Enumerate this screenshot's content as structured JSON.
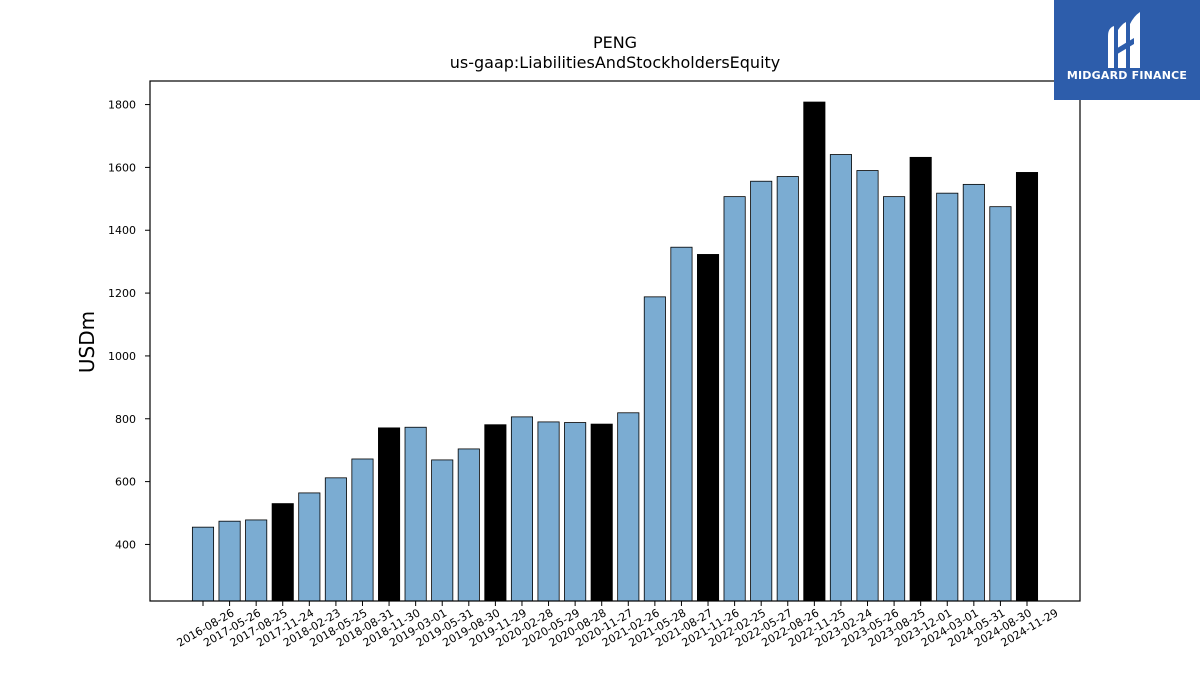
{
  "chart_data": {
    "type": "bar",
    "title": "PENG",
    "subtitle": "us-gaap:LiabilitiesAndStockholdersEquity",
    "ylabel": "USDm",
    "ylim": [
      220,
      1875
    ],
    "yticks": [
      400,
      600,
      800,
      1000,
      1200,
      1400,
      1600,
      1800
    ],
    "grid": false,
    "categories": [
      "2016-08-26",
      "2017-05-26",
      "2017-08-25",
      "2017-11-24",
      "2018-02-23",
      "2018-05-25",
      "2018-08-31",
      "2018-11-30",
      "2019-03-01",
      "2019-05-31",
      "2019-08-30",
      "2019-11-29",
      "2020-02-28",
      "2020-05-29",
      "2020-08-28",
      "2020-11-27",
      "2021-02-26",
      "2021-05-28",
      "2021-08-27",
      "2021-11-26",
      "2022-02-25",
      "2022-05-27",
      "2022-08-26",
      "2022-11-25",
      "2023-02-24",
      "2023-05-26",
      "2023-08-25",
      "2023-12-01",
      "2024-03-01",
      "2024-05-31",
      "2024-08-30",
      "2024-11-29"
    ],
    "values": [
      455,
      474,
      478,
      530,
      564,
      612,
      672,
      771,
      773,
      669,
      704,
      781,
      806,
      790,
      788,
      783,
      819,
      1188,
      1346,
      1323,
      1507,
      1556,
      1571,
      1808,
      1641,
      1590,
      1507,
      1632,
      1518,
      1546,
      1475,
      1584
    ],
    "highlight": [
      false,
      false,
      false,
      true,
      false,
      false,
      false,
      true,
      false,
      false,
      false,
      true,
      false,
      false,
      false,
      true,
      false,
      false,
      false,
      true,
      false,
      false,
      false,
      true,
      false,
      false,
      false,
      true,
      false,
      false,
      false,
      true
    ],
    "colors": {
      "normal": "#7bacd2",
      "highlight": "#000000",
      "edge": "#000000"
    }
  },
  "logo": {
    "text": "MIDGARD FINANCE",
    "background": "#2d5dab"
  }
}
